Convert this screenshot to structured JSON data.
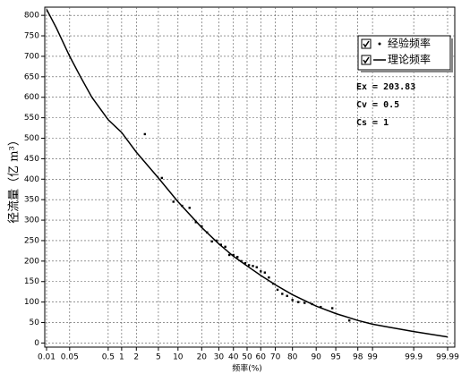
{
  "chart_data": {
    "type": "line",
    "x_scale": "normal-probability",
    "grid": true,
    "x_label": "频率(%)",
    "y_label": "径流量（亿 m³）",
    "xlim": [
      0.01,
      99.99
    ],
    "ylim": [
      -10,
      820
    ],
    "xticks": [
      0.01,
      0.05,
      0.5,
      1,
      2,
      5,
      10,
      20,
      30,
      40,
      50,
      60,
      70,
      80,
      90,
      95,
      98,
      99,
      99.9,
      99.99
    ],
    "yticks": [
      0,
      50,
      100,
      150,
      200,
      250,
      300,
      350,
      400,
      450,
      500,
      550,
      600,
      650,
      700,
      750,
      800
    ],
    "legend": "top-right",
    "series": [
      {
        "name": "经验频率",
        "kind": "scatter",
        "color": "#000000",
        "x": [
          2.9,
          5.7,
          8.6,
          11.4,
          14.3,
          17.1,
          20,
          22.9,
          25.7,
          28.6,
          31.4,
          34.3,
          37.1,
          40,
          42.9,
          45.7,
          48.6,
          51.4,
          54.3,
          57.1,
          60,
          62.9,
          65.7,
          68.6,
          71.4,
          74.3,
          77.1,
          80,
          82.9,
          85.7,
          88.6,
          91.4,
          94.3,
          97.1
        ],
        "values": [
          510,
          403,
          345,
          335,
          330,
          295,
          285,
          270,
          248,
          250,
          240,
          235,
          215,
          215,
          210,
          200,
          195,
          190,
          188,
          185,
          175,
          172,
          160,
          145,
          130,
          120,
          115,
          105,
          100,
          98,
          95,
          88,
          85,
          55
        ]
      },
      {
        "name": "理论频率",
        "kind": "line",
        "color": "#000000",
        "x": [
          0.01,
          0.02,
          0.05,
          0.1,
          0.2,
          0.5,
          1,
          2,
          5,
          10,
          20,
          30,
          40,
          50,
          60,
          70,
          80,
          90,
          95,
          98,
          99,
          99.5,
          99.9,
          99.99
        ],
        "values": [
          815,
          770,
          700,
          650,
          600,
          545,
          514,
          466,
          403,
          345,
          282,
          242,
          212,
          188,
          165,
          142,
          118,
          90,
          72,
          55,
          46,
          40,
          28,
          15
        ]
      }
    ],
    "annotations": [
      "Ex = 203.83",
      "Cv = 0.5",
      "Cs = 1"
    ]
  }
}
